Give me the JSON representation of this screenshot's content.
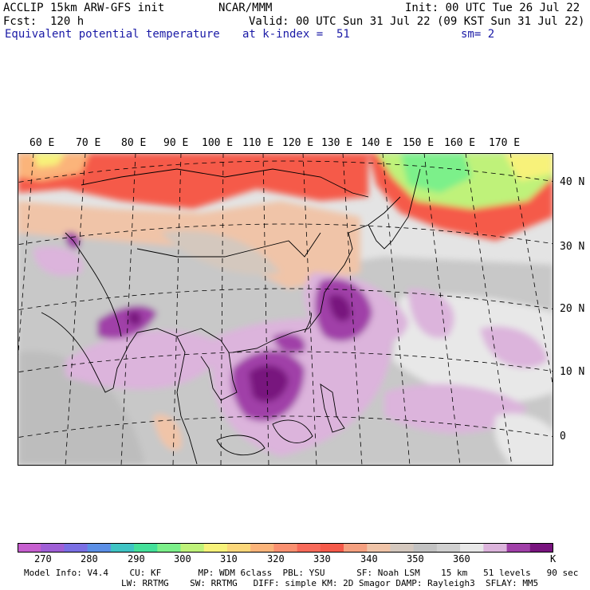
{
  "header": {
    "model": "ACCLIP 15km ARW-GFS init",
    "org": "NCAR/MMM",
    "init": "Init: 00 UTC Tue 26 Jul 22",
    "fcst": "Fcst:  120 h",
    "valid": "Valid: 00 UTC Sun 31 Jul 22 (09 KST Sun 31 Jul 22)",
    "field": "Equivalent potential temperature",
    "level": "at k-index =  51",
    "smooth": "sm= 2"
  },
  "map": {
    "lon_labels": [
      "60 E",
      "70 E",
      "80 E",
      "90 E",
      "100 E",
      "110 E",
      "120 E",
      "130 E",
      "140 E",
      "150 E",
      "160 E",
      "170 E"
    ],
    "lat_labels": [
      "40 N",
      "30 N",
      "20 N",
      "10 N",
      "0"
    ]
  },
  "colorbar": {
    "labels": [
      "270",
      "280",
      "290",
      "300",
      "310",
      "320",
      "330",
      "340",
      "350",
      "360"
    ],
    "unit": "K",
    "colors": [
      "#c65fcf",
      "#9f5fd6",
      "#7a6fe4",
      "#5b8fe6",
      "#3fc4c4",
      "#44e09a",
      "#7cf08a",
      "#bff27a",
      "#f7f27a",
      "#fbd77a",
      "#fbb47a",
      "#fa9070",
      "#f86a5a",
      "#f55a4a",
      "#f5a080",
      "#f0c4a8",
      "#d4c8be",
      "#c2c2c2",
      "#d0d0d0",
      "#e8e8e8",
      "#dcb4dc",
      "#a040a8",
      "#78147e"
    ]
  },
  "info": {
    "line1": "Model Info: V4.4    CU: KF       MP: WDM 6class  PBL: YSU      SF: Noah LSM    15 km   51 levels   90 sec",
    "line2": "LW: RRTMG    SW: RRTMG   DIFF: simple KM: 2D Smagor DAMP: Rayleigh3  SFLAY: MM5"
  }
}
